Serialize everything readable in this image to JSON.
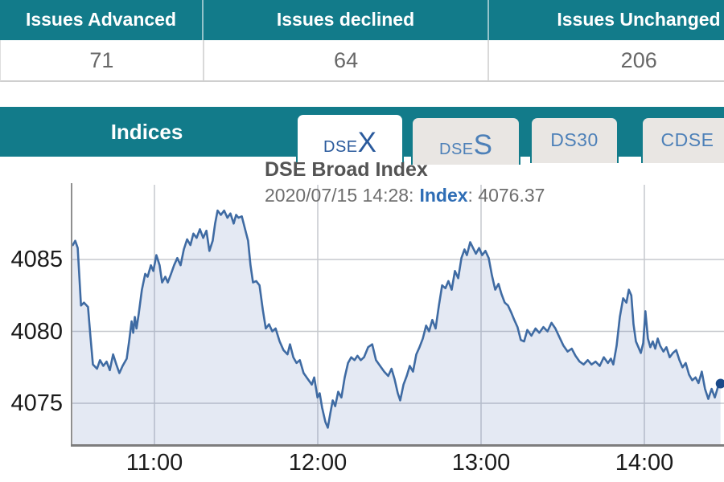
{
  "issues_table": {
    "columns": [
      {
        "header": "Issues Advanced",
        "value": "71"
      },
      {
        "header": "Issues declined",
        "value": "64"
      },
      {
        "header": "Issues Unchanged",
        "value": "206"
      }
    ]
  },
  "indices": {
    "title": "Indices",
    "tabs": [
      {
        "name": "DSEX",
        "prefix": "DSE",
        "suffix": "X",
        "active": true
      },
      {
        "name": "DSES",
        "prefix": "DSE",
        "suffix": "S",
        "active": false
      },
      {
        "name": "DS30",
        "label": "DS30",
        "active": false
      },
      {
        "name": "CDSE",
        "label": "CDSE",
        "active": false
      }
    ]
  },
  "chart": {
    "title": "DSE Broad Index",
    "subtitle_datetime": "2020/07/15 14:28:",
    "subtitle_key": "Index",
    "subtitle_value": ": 4076.37"
  },
  "theme": {
    "teal": "#127b8a",
    "active_tab_text": "#2a5a9c",
    "inactive_tab_text": "#4d80b8",
    "inactive_tab_bg": "#e9e6e3"
  },
  "chart_data": {
    "type": "area",
    "title": "DSE Broad Index",
    "subtitle": "2020/07/15 14:28: Index: 4076.37",
    "series_name": "Index",
    "last_value": 4076.37,
    "x_unit": "minutes since 10:30",
    "x_range_minutes": [
      0,
      238
    ],
    "ylim": [
      4071.5,
      4090
    ],
    "grid": true,
    "x_ticks": [
      {
        "label": "11:00",
        "m": 30
      },
      {
        "label": "12:00",
        "m": 90
      },
      {
        "label": "13:00",
        "m": 150
      },
      {
        "label": "14:00",
        "m": 210
      }
    ],
    "y_ticks": [
      4075,
      4080,
      4085
    ],
    "colors": {
      "line": "#3f6ba3",
      "fill": "rgba(86,118,183,0.16)",
      "marker": "#1b4a8a",
      "grid": "#c6c9cd",
      "axis": "#7d7d7d",
      "spine": "#8f8f8f"
    },
    "points": [
      [
        0,
        4086.0
      ],
      [
        0.9,
        4086.3
      ],
      [
        1.8,
        4085.8
      ],
      [
        3,
        4081.8
      ],
      [
        4.1,
        4082.0
      ],
      [
        5.6,
        4081.7
      ],
      [
        6.5,
        4079.6
      ],
      [
        7.4,
        4077.7
      ],
      [
        8.9,
        4077.4
      ],
      [
        10,
        4078.0
      ],
      [
        11.2,
        4077.6
      ],
      [
        12.4,
        4077.9
      ],
      [
        13.6,
        4077.3
      ],
      [
        14.8,
        4078.4
      ],
      [
        16,
        4077.7
      ],
      [
        17.1,
        4077.1
      ],
      [
        18.3,
        4077.6
      ],
      [
        19.8,
        4078.1
      ],
      [
        20.7,
        4079.3
      ],
      [
        21.6,
        4080.7
      ],
      [
        22.2,
        4079.9
      ],
      [
        22.8,
        4081.0
      ],
      [
        23.4,
        4080.2
      ],
      [
        24.2,
        4081.2
      ],
      [
        25.4,
        4082.9
      ],
      [
        26.6,
        4084.0
      ],
      [
        27.5,
        4083.8
      ],
      [
        28.7,
        4084.6
      ],
      [
        29.6,
        4084.2
      ],
      [
        30.7,
        4085.3
      ],
      [
        31.9,
        4084.6
      ],
      [
        32.8,
        4083.4
      ],
      [
        34,
        4083.8
      ],
      [
        34.9,
        4083.4
      ],
      [
        36.1,
        4084.0
      ],
      [
        37.2,
        4084.6
      ],
      [
        38.4,
        4085.1
      ],
      [
        39.6,
        4084.6
      ],
      [
        40.8,
        4085.7
      ],
      [
        42,
        4086.4
      ],
      [
        43.2,
        4086.0
      ],
      [
        44.3,
        4086.8
      ],
      [
        45.5,
        4086.5
      ],
      [
        46.7,
        4087.1
      ],
      [
        47.9,
        4086.5
      ],
      [
        49.1,
        4087.0
      ],
      [
        50.2,
        4085.6
      ],
      [
        51.4,
        4086.3
      ],
      [
        52.3,
        4087.5
      ],
      [
        53.2,
        4088.4
      ],
      [
        54.4,
        4088.1
      ],
      [
        55.6,
        4088.4
      ],
      [
        56.8,
        4087.9
      ],
      [
        57.9,
        4088.2
      ],
      [
        59.1,
        4087.5
      ],
      [
        60,
        4088.1
      ],
      [
        60.9,
        4087.9
      ],
      [
        62.1,
        4088.0
      ],
      [
        63.3,
        4087.1
      ],
      [
        64.4,
        4086.3
      ],
      [
        65.3,
        4084.6
      ],
      [
        66.2,
        4083.4
      ],
      [
        67.4,
        4083.5
      ],
      [
        68.6,
        4083.2
      ],
      [
        69.8,
        4081.5
      ],
      [
        70.9,
        4080.2
      ],
      [
        72.1,
        4080.5
      ],
      [
        73.3,
        4080.0
      ],
      [
        74.5,
        4080.2
      ],
      [
        76,
        4079.3
      ],
      [
        77.4,
        4078.7
      ],
      [
        78.9,
        4078.4
      ],
      [
        79.8,
        4079.1
      ],
      [
        81,
        4078.2
      ],
      [
        82.2,
        4077.8
      ],
      [
        83.4,
        4078.0
      ],
      [
        84.8,
        4077.1
      ],
      [
        86.3,
        4076.7
      ],
      [
        87.8,
        4076.3
      ],
      [
        88.7,
        4076.8
      ],
      [
        89.9,
        4075.4
      ],
      [
        90.7,
        4075.7
      ],
      [
        91.6,
        4074.7
      ],
      [
        92.8,
        4073.7
      ],
      [
        93.7,
        4073.3
      ],
      [
        94.6,
        4074.3
      ],
      [
        95.5,
        4075.2
      ],
      [
        96.4,
        4074.8
      ],
      [
        97.5,
        4075.8
      ],
      [
        98.7,
        4075.4
      ],
      [
        99.9,
        4076.8
      ],
      [
        101.1,
        4077.8
      ],
      [
        102.3,
        4078.2
      ],
      [
        103.5,
        4078.0
      ],
      [
        104.6,
        4078.3
      ],
      [
        105.8,
        4078.0
      ],
      [
        107,
        4078.2
      ],
      [
        108.5,
        4078.9
      ],
      [
        110,
        4079.1
      ],
      [
        111.4,
        4078.0
      ],
      [
        112.9,
        4077.6
      ],
      [
        114.4,
        4077.2
      ],
      [
        115.9,
        4076.9
      ],
      [
        117.1,
        4077.4
      ],
      [
        118.2,
        4076.7
      ],
      [
        119.4,
        4075.7
      ],
      [
        120.3,
        4075.2
      ],
      [
        121.5,
        4076.3
      ],
      [
        122.7,
        4076.9
      ],
      [
        123.8,
        4077.6
      ],
      [
        125,
        4077.2
      ],
      [
        126.2,
        4078.4
      ],
      [
        127.4,
        4078.9
      ],
      [
        128.6,
        4079.5
      ],
      [
        129.8,
        4080.4
      ],
      [
        130.9,
        4080.0
      ],
      [
        132.1,
        4080.8
      ],
      [
        133.3,
        4080.2
      ],
      [
        134.5,
        4081.8
      ],
      [
        135.7,
        4083.2
      ],
      [
        136.9,
        4083.0
      ],
      [
        138,
        4083.5
      ],
      [
        139.2,
        4082.9
      ],
      [
        140.4,
        4084.2
      ],
      [
        141.6,
        4083.7
      ],
      [
        142.8,
        4085.1
      ],
      [
        143.9,
        4085.7
      ],
      [
        144.8,
        4085.3
      ],
      [
        146,
        4086.2
      ],
      [
        148.1,
        4085.4
      ],
      [
        149.3,
        4085.8
      ],
      [
        150.4,
        4085.3
      ],
      [
        151.6,
        4085.6
      ],
      [
        152.8,
        4085.1
      ],
      [
        154,
        4083.9
      ],
      [
        155.2,
        4082.9
      ],
      [
        156.4,
        4083.3
      ],
      [
        157.5,
        4082.6
      ],
      [
        158.7,
        4082.0
      ],
      [
        159.9,
        4081.8
      ],
      [
        161.1,
        4081.3
      ],
      [
        162.2,
        4080.8
      ],
      [
        163.4,
        4080.3
      ],
      [
        164.6,
        4079.4
      ],
      [
        165.8,
        4079.3
      ],
      [
        167,
        4080.1
      ],
      [
        168.5,
        4079.7
      ],
      [
        170,
        4080.2
      ],
      [
        171.4,
        4079.9
      ],
      [
        172.9,
        4080.3
      ],
      [
        174.4,
        4080.0
      ],
      [
        175.9,
        4080.6
      ],
      [
        177.3,
        4080.2
      ],
      [
        178.8,
        4079.6
      ],
      [
        180.3,
        4079.0
      ],
      [
        181.8,
        4078.6
      ],
      [
        183.3,
        4078.8
      ],
      [
        184.7,
        4078.3
      ],
      [
        186.2,
        4077.9
      ],
      [
        187.7,
        4077.7
      ],
      [
        189.2,
        4078.0
      ],
      [
        190.6,
        4077.7
      ],
      [
        192.1,
        4077.9
      ],
      [
        193.6,
        4077.6
      ],
      [
        195.1,
        4078.2
      ],
      [
        196.6,
        4077.8
      ],
      [
        197.7,
        4078.1
      ],
      [
        198.6,
        4077.7
      ],
      [
        199.8,
        4079.0
      ],
      [
        201,
        4081.0
      ],
      [
        202.2,
        4082.3
      ],
      [
        203.4,
        4082.0
      ],
      [
        204.3,
        4082.9
      ],
      [
        205.2,
        4082.5
      ],
      [
        206,
        4080.5
      ],
      [
        206.9,
        4079.3
      ],
      [
        207.8,
        4078.9
      ],
      [
        208.7,
        4078.5
      ],
      [
        209.6,
        4079.2
      ],
      [
        210.4,
        4081.4
      ],
      [
        211.3,
        4079.5
      ],
      [
        212.2,
        4078.9
      ],
      [
        213.1,
        4079.3
      ],
      [
        214,
        4078.8
      ],
      [
        214.9,
        4079.5
      ],
      [
        215.8,
        4079.0
      ],
      [
        217,
        4078.6
      ],
      [
        218.1,
        4078.9
      ],
      [
        219.3,
        4078.2
      ],
      [
        220.5,
        4078.5
      ],
      [
        221.7,
        4078.7
      ],
      [
        222.9,
        4078.0
      ],
      [
        224,
        4077.5
      ],
      [
        225.2,
        4077.8
      ],
      [
        226.4,
        4077.0
      ],
      [
        227.6,
        4076.6
      ],
      [
        228.8,
        4076.8
      ],
      [
        229.9,
        4076.4
      ],
      [
        231.1,
        4077.2
      ],
      [
        232.3,
        4076.0
      ],
      [
        233.5,
        4075.3
      ],
      [
        234.7,
        4076.0
      ],
      [
        235.9,
        4075.4
      ],
      [
        237,
        4076.1
      ],
      [
        238,
        4076.37
      ]
    ]
  }
}
